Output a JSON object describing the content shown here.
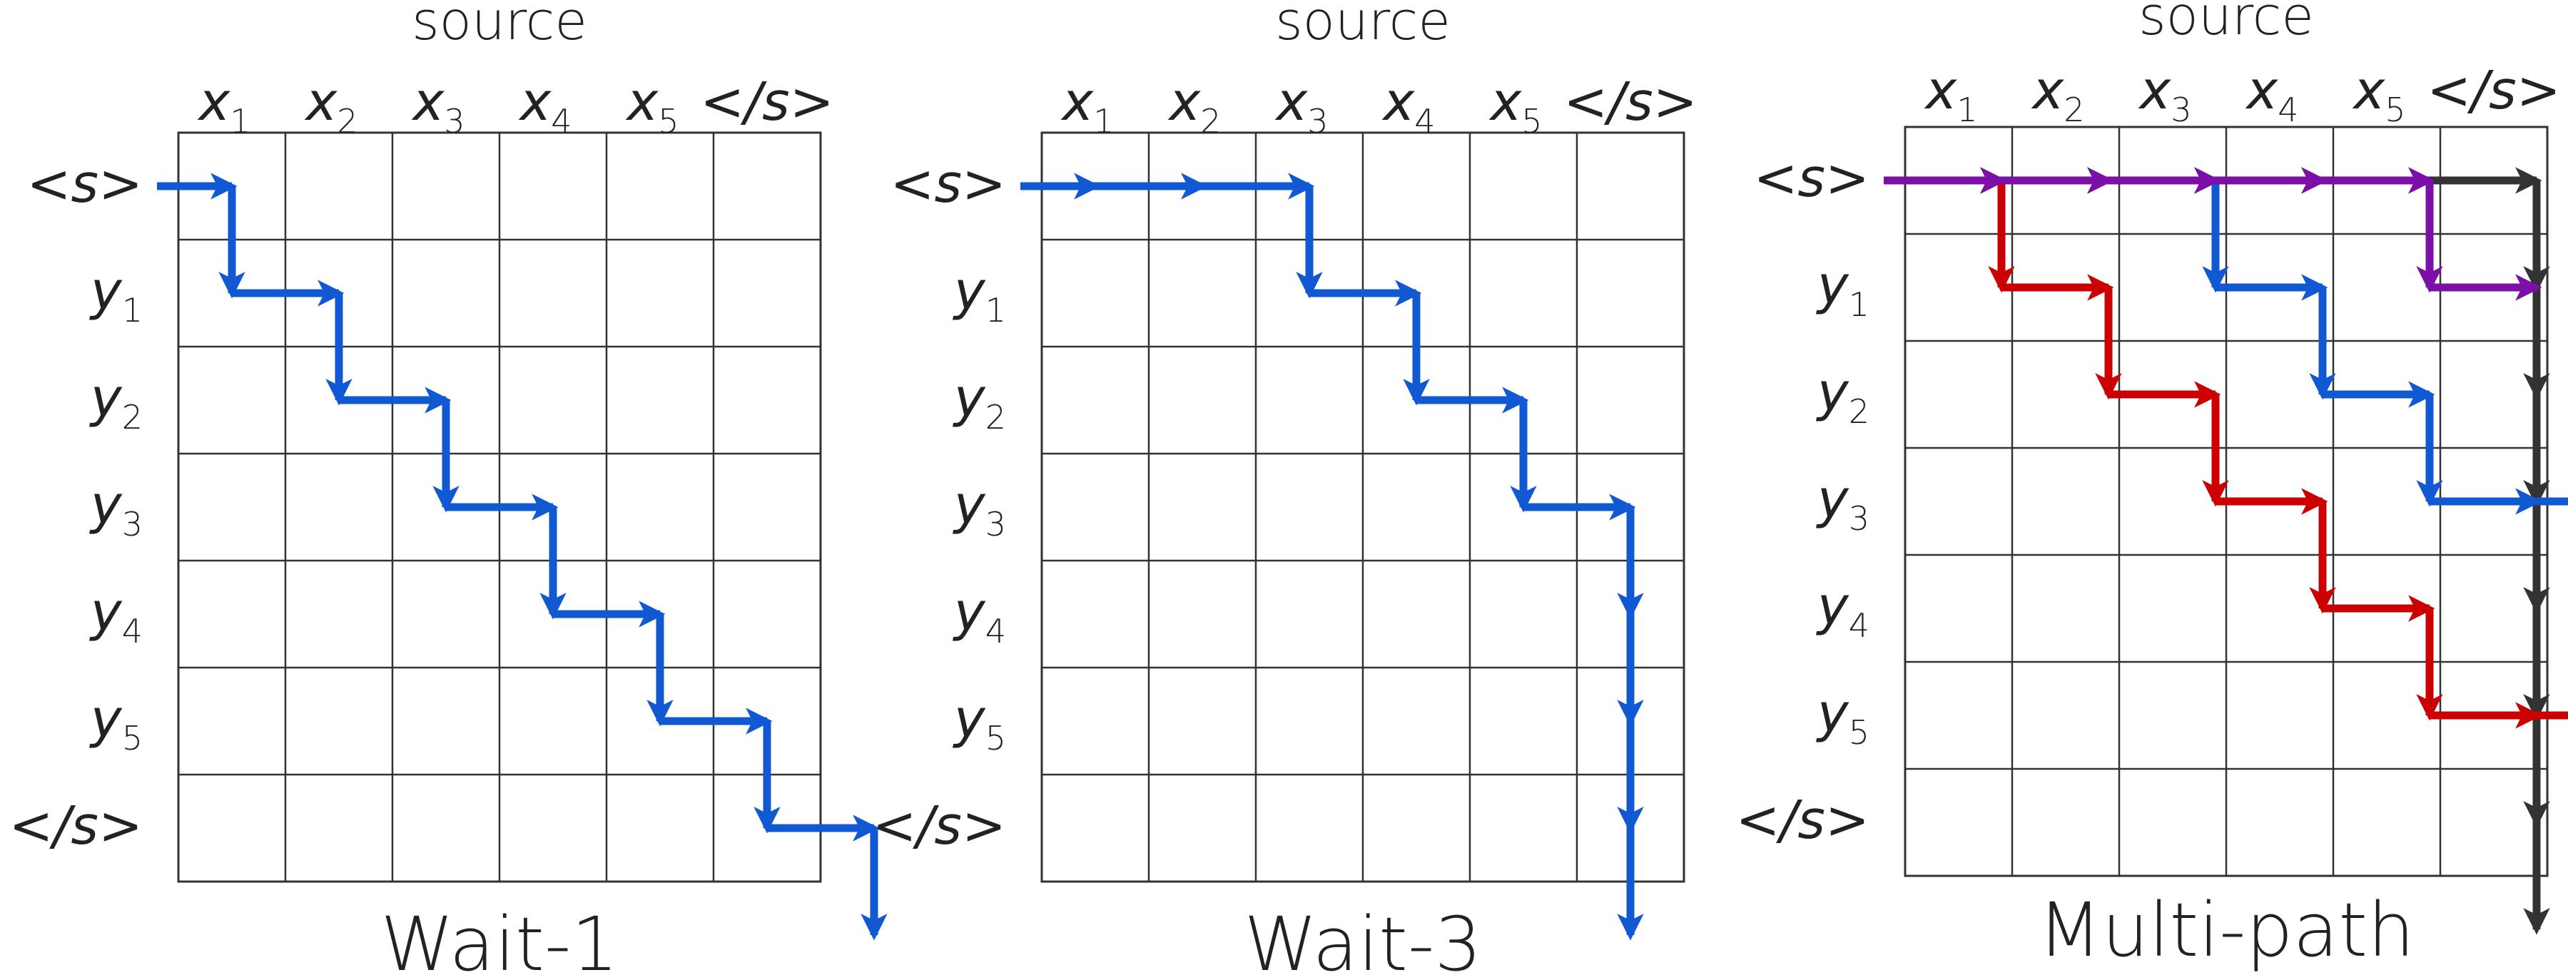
{
  "colors": {
    "blue": "#1059d2",
    "red": "#cc0000",
    "black": "#333333",
    "purple": "#7d0ea8",
    "grid": "#333333"
  },
  "panels": [
    {
      "id": "wait1",
      "header": "source",
      "title": "Wait-1",
      "columns": [
        {
          "base": "x",
          "sub": "1"
        },
        {
          "base": "x",
          "sub": "2"
        },
        {
          "base": "x",
          "sub": "3"
        },
        {
          "base": "x",
          "sub": "4"
        },
        {
          "base": "x",
          "sub": "5"
        },
        {
          "base": "</s>",
          "sub": ""
        }
      ],
      "rows": [
        {
          "base": "<s>",
          "sub": ""
        },
        {
          "base": "y",
          "sub": "1"
        },
        {
          "base": "y",
          "sub": "2"
        },
        {
          "base": "y",
          "sub": "3"
        },
        {
          "base": "y",
          "sub": "4"
        },
        {
          "base": "y",
          "sub": "5"
        },
        {
          "base": "</s>",
          "sub": ""
        }
      ],
      "paths": [
        {
          "color": "blue",
          "moves": "RDRDRDRDRDRDRD"
        }
      ]
    },
    {
      "id": "wait3",
      "header": "source",
      "title": "Wait-3",
      "columns": [
        {
          "base": "x",
          "sub": "1"
        },
        {
          "base": "x",
          "sub": "2"
        },
        {
          "base": "x",
          "sub": "3"
        },
        {
          "base": "x",
          "sub": "4"
        },
        {
          "base": "x",
          "sub": "5"
        },
        {
          "base": "</s>",
          "sub": ""
        }
      ],
      "rows": [
        {
          "base": "<s>",
          "sub": ""
        },
        {
          "base": "y",
          "sub": "1"
        },
        {
          "base": "y",
          "sub": "2"
        },
        {
          "base": "y",
          "sub": "3"
        },
        {
          "base": "y",
          "sub": "4"
        },
        {
          "base": "y",
          "sub": "5"
        },
        {
          "base": "</s>",
          "sub": ""
        }
      ],
      "paths": [
        {
          "color": "blue",
          "moves": "RRRDRDRDRDDDD"
        }
      ]
    },
    {
      "id": "multipath",
      "header": "source",
      "title": "Multi-path",
      "columns": [
        {
          "base": "x",
          "sub": "1"
        },
        {
          "base": "x",
          "sub": "2"
        },
        {
          "base": "x",
          "sub": "3"
        },
        {
          "base": "x",
          "sub": "4"
        },
        {
          "base": "x",
          "sub": "5"
        },
        {
          "base": "</s>",
          "sub": ""
        }
      ],
      "rows": [
        {
          "base": "<s>",
          "sub": ""
        },
        {
          "base": "y",
          "sub": "1"
        },
        {
          "base": "y",
          "sub": "2"
        },
        {
          "base": "y",
          "sub": "3"
        },
        {
          "base": "y",
          "sub": "4"
        },
        {
          "base": "y",
          "sub": "5"
        },
        {
          "base": "</s>",
          "sub": ""
        }
      ],
      "paths": [
        {
          "color": "black",
          "moves": "RRRRRRDDDDDDD"
        },
        {
          "color": "red",
          "moves": "RDRDRDRDRDRR"
        },
        {
          "color": "blue",
          "moves": "RRRDRDRDRR"
        },
        {
          "color": "purple",
          "moves": "RRRRRDR"
        }
      ]
    }
  ]
}
